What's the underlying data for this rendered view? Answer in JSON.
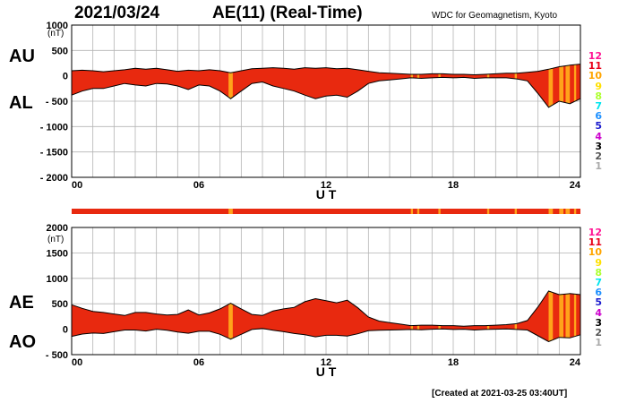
{
  "header": {
    "date": "2021/03/24",
    "title": "AE(11) (Real-Time)",
    "source": "WDC for Geomagnetism, Kyoto"
  },
  "footer": {
    "created": "[Created at 2021-03-25 03:40UT]"
  },
  "panels": {
    "top": {
      "label_upper": "AU",
      "label_lower": "AL",
      "unit": "(nT)"
    },
    "bottom": {
      "label_upper": "AE",
      "label_lower": "AO",
      "unit": "(nT)"
    }
  },
  "station_scale": [
    {
      "n": "12",
      "color": "#ff1493"
    },
    {
      "n": "11",
      "color": "#e8001a"
    },
    {
      "n": "10",
      "color": "#ffa500"
    },
    {
      "n": "9",
      "color": "#ffe000"
    },
    {
      "n": "8",
      "color": "#adff2f"
    },
    {
      "n": "7",
      "color": "#00e5ee"
    },
    {
      "n": "6",
      "color": "#1e90ff"
    },
    {
      "n": "5",
      "color": "#1c1ccd"
    },
    {
      "n": "4",
      "color": "#cc00cc"
    },
    {
      "n": "3",
      "color": "#000000"
    },
    {
      "n": "2",
      "color": "#555555"
    },
    {
      "n": "1",
      "color": "#aaaaaa"
    }
  ],
  "colors": {
    "fill_11_stations": "#e8290f",
    "fill_10_stations": "#ffa31a",
    "grid": "#b4b4b4"
  },
  "chart_data": [
    {
      "type": "area",
      "panel": "AU / AL",
      "xlabel": "U T",
      "ylabel": "",
      "x_ticks": [
        "00",
        "06",
        "12",
        "18",
        "24"
      ],
      "xlim": [
        0,
        24
      ],
      "ylim": [
        -2000,
        1000
      ],
      "y_ticks": [
        1000,
        500,
        0,
        -500,
        -1000,
        -1500,
        -2000
      ],
      "y_tick_labels": [
        "1000",
        "500",
        "0",
        "- 500",
        "- 1000",
        "- 1500",
        "- 2000"
      ],
      "x": [
        0,
        0.5,
        1,
        1.5,
        2,
        2.5,
        3,
        3.5,
        4,
        4.5,
        5,
        5.5,
        6,
        6.5,
        7,
        7.5,
        8,
        8.5,
        9,
        9.5,
        10,
        10.5,
        11,
        11.5,
        12,
        12.5,
        13,
        13.5,
        14,
        14.5,
        15,
        15.5,
        16,
        16.5,
        17,
        17.5,
        18,
        18.5,
        19,
        19.5,
        20,
        20.5,
        21,
        21.5,
        22,
        22.5,
        23,
        23.5,
        24
      ],
      "series": [
        {
          "name": "AU",
          "values": [
            100,
            110,
            100,
            80,
            100,
            120,
            150,
            130,
            150,
            120,
            90,
            110,
            100,
            120,
            100,
            60,
            100,
            140,
            150,
            160,
            150,
            130,
            160,
            150,
            160,
            140,
            150,
            120,
            90,
            60,
            50,
            40,
            30,
            30,
            40,
            40,
            30,
            30,
            20,
            30,
            40,
            50,
            50,
            70,
            90,
            130,
            180,
            210,
            230
          ]
        },
        {
          "name": "AL",
          "values": [
            -380,
            -300,
            -250,
            -250,
            -200,
            -150,
            -180,
            -200,
            -150,
            -160,
            -200,
            -270,
            -180,
            -200,
            -300,
            -450,
            -300,
            -150,
            -120,
            -200,
            -250,
            -300,
            -380,
            -450,
            -400,
            -380,
            -420,
            -300,
            -150,
            -100,
            -80,
            -60,
            -40,
            -50,
            -40,
            -30,
            -40,
            -30,
            -50,
            -40,
            -40,
            -40,
            -60,
            -100,
            -350,
            -620,
            -500,
            -550,
            -450
          ]
        }
      ],
      "stations_below_11": [
        [
          7.4,
          7.6
        ],
        [
          16.0,
          16.1
        ],
        [
          16.3,
          16.4
        ],
        [
          17.3,
          17.4
        ],
        [
          19.6,
          19.7
        ],
        [
          20.9,
          21.0
        ],
        [
          22.5,
          22.7
        ],
        [
          23.0,
          23.2
        ],
        [
          23.3,
          23.5
        ],
        [
          23.7,
          23.8
        ]
      ]
    },
    {
      "type": "area",
      "panel": "AE / AO",
      "xlabel": "U T",
      "ylabel": "",
      "x_ticks": [
        "00",
        "06",
        "12",
        "18",
        "24"
      ],
      "xlim": [
        0,
        24
      ],
      "ylim": [
        -500,
        2000
      ],
      "y_ticks": [
        2000,
        1500,
        1000,
        500,
        0,
        -500
      ],
      "y_tick_labels": [
        "2000",
        "1500",
        "1000",
        "500",
        "0",
        "- 500"
      ],
      "x": [
        0,
        0.5,
        1,
        1.5,
        2,
        2.5,
        3,
        3.5,
        4,
        4.5,
        5,
        5.5,
        6,
        6.5,
        7,
        7.5,
        8,
        8.5,
        9,
        9.5,
        10,
        10.5,
        11,
        11.5,
        12,
        12.5,
        13,
        13.5,
        14,
        14.5,
        15,
        15.5,
        16,
        16.5,
        17,
        17.5,
        18,
        18.5,
        19,
        19.5,
        20,
        20.5,
        21,
        21.5,
        22,
        22.5,
        23,
        23.5,
        24
      ],
      "series": [
        {
          "name": "AE",
          "values": [
            480,
            410,
            350,
            330,
            300,
            270,
            330,
            330,
            300,
            280,
            290,
            380,
            280,
            320,
            400,
            510,
            400,
            290,
            270,
            360,
            400,
            430,
            540,
            600,
            560,
            520,
            570,
            420,
            240,
            160,
            130,
            100,
            70,
            80,
            80,
            70,
            70,
            60,
            70,
            70,
            80,
            90,
            110,
            170,
            440,
            750,
            680,
            700,
            680
          ]
        },
        {
          "name": "AO",
          "values": [
            -140,
            -95,
            -75,
            -85,
            -50,
            -15,
            -15,
            -35,
            0,
            -20,
            -55,
            -80,
            -40,
            -40,
            -100,
            -195,
            -100,
            -5,
            15,
            -20,
            -50,
            -85,
            -110,
            -150,
            -120,
            -120,
            -135,
            -90,
            -30,
            -20,
            -15,
            -10,
            -5,
            -10,
            0,
            5,
            -5,
            0,
            -15,
            -5,
            0,
            5,
            -5,
            -15,
            -130,
            -245,
            -160,
            -170,
            -110
          ]
        }
      ],
      "stations_below_11": [
        [
          7.4,
          7.6
        ],
        [
          16.0,
          16.1
        ],
        [
          16.3,
          16.4
        ],
        [
          17.3,
          17.4
        ],
        [
          19.6,
          19.7
        ],
        [
          20.9,
          21.0
        ],
        [
          22.5,
          22.7
        ],
        [
          23.0,
          23.2
        ],
        [
          23.3,
          23.5
        ],
        [
          23.7,
          23.8
        ]
      ]
    }
  ]
}
